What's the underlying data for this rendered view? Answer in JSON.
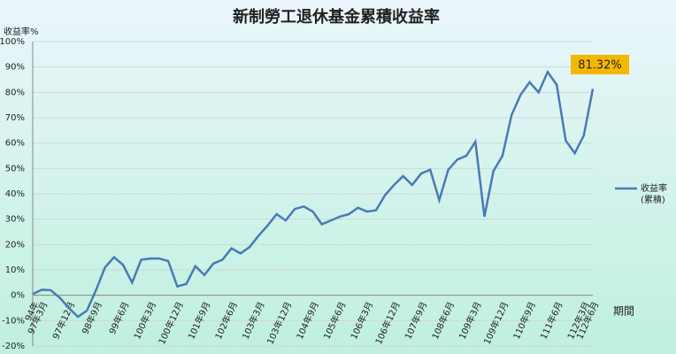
{
  "chart_data": {
    "type": "line",
    "title": "新制勞工退休基金累積收益率",
    "y_label": "收益率%",
    "x_label": "期間",
    "categories": [
      "94年",
      "97年3月",
      null,
      null,
      "97年12月",
      null,
      null,
      "98年9月",
      null,
      null,
      "99年6月",
      null,
      null,
      "100年3月",
      null,
      null,
      "100年12月",
      null,
      null,
      "101年9月",
      null,
      null,
      "102年6月",
      null,
      null,
      "103年3月",
      null,
      null,
      "103年12月",
      null,
      null,
      "104年9月",
      null,
      null,
      "105年6月",
      null,
      null,
      "106年3月",
      null,
      null,
      "106年12月",
      null,
      null,
      "107年9月",
      null,
      null,
      "108年6月",
      null,
      null,
      "109年3月",
      null,
      null,
      "109年12月",
      null,
      null,
      "110年9月",
      null,
      null,
      "111年6月",
      null,
      null,
      "112年3月",
      "112年6月"
    ],
    "series": [
      {
        "name": "收益率\n(累積)",
        "color": "#4a7ab5",
        "values": [
          0.5,
          2.2,
          2,
          -1,
          -5,
          -8.5,
          -6,
          2,
          11,
          15,
          12,
          5,
          14,
          14.5,
          14.5,
          13.5,
          3.5,
          4.5,
          11.5,
          8,
          12.5,
          14,
          18.5,
          16.5,
          19,
          23.5,
          27.5,
          32,
          29.5,
          34,
          35,
          33,
          28,
          29.5,
          31,
          32,
          34.5,
          33,
          33.5,
          39.5,
          43.5,
          47,
          43.5,
          48,
          49.5,
          37.5,
          49.5,
          53.5,
          55,
          60.5,
          31,
          49,
          55,
          71,
          79,
          84,
          80,
          88,
          83,
          61,
          56,
          63,
          81.32
        ]
      }
    ],
    "annotation": "81.32%",
    "ylim": [
      -20,
      100
    ],
    "yticks": [
      {
        "value": -20,
        "label": "-20%"
      },
      {
        "value": -10,
        "label": "-10%"
      },
      {
        "value": 0,
        "label": "0%"
      },
      {
        "value": 10,
        "label": "10%"
      },
      {
        "value": 20,
        "label": "20%"
      },
      {
        "value": 30,
        "label": "30%"
      },
      {
        "value": 40,
        "label": "40%"
      },
      {
        "value": 50,
        "label": "50%"
      },
      {
        "value": 60,
        "label": "60%"
      },
      {
        "value": 70,
        "label": "70%"
      },
      {
        "value": 80,
        "label": "80%"
      },
      {
        "value": 90,
        "label": "90%"
      },
      {
        "value": 100,
        "label": "100%"
      }
    ],
    "grid": true
  }
}
